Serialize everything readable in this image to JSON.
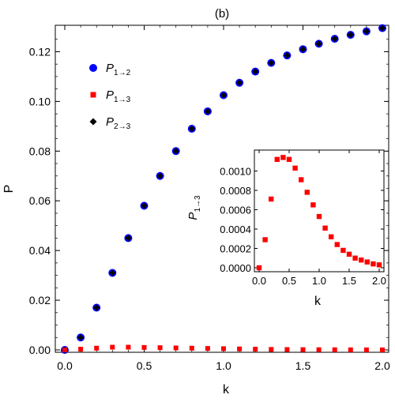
{
  "chart_data": [
    {
      "type": "scatter",
      "title": "(b)",
      "xlabel": "k",
      "ylabel": "P",
      "xlim": [
        0.0,
        2.0
      ],
      "ylim": [
        0.0,
        0.13
      ],
      "xticks": [
        "0.0",
        "0.5",
        "1.0",
        "1.5",
        "2.0"
      ],
      "yticks": [
        "0.00",
        "0.02",
        "0.04",
        "0.06",
        "0.08",
        "0.10",
        "0.12"
      ],
      "x": [
        0.0,
        0.1,
        0.2,
        0.3,
        0.4,
        0.5,
        0.6,
        0.7,
        0.8,
        0.9,
        1.0,
        1.1,
        1.2,
        1.3,
        1.4,
        1.5,
        1.6,
        1.7,
        1.8,
        1.9,
        2.0
      ],
      "series": [
        {
          "name": "P1→2",
          "label_main": "P",
          "label_sub": "1→2",
          "marker": "circle",
          "color": "#0000ff",
          "values": [
            0.0,
            0.005,
            0.017,
            0.031,
            0.045,
            0.058,
            0.07,
            0.08,
            0.089,
            0.096,
            0.1025,
            0.1075,
            0.112,
            0.1155,
            0.1185,
            0.121,
            0.1232,
            0.1252,
            0.1268,
            0.1282,
            0.1295
          ]
        },
        {
          "name": "P1→3",
          "label_main": "P",
          "label_sub": "1→3",
          "marker": "square",
          "color": "#ff0000",
          "values": [
            0.0,
            0.0003,
            0.0007,
            0.0011,
            0.0011,
            0.001,
            0.0009,
            0.0008,
            0.0007,
            0.0006,
            0.0005,
            0.0004,
            0.0003,
            0.0002,
            0.00016,
            0.00012,
            9e-05,
            7e-05,
            5e-05,
            4e-05,
            3e-05
          ]
        },
        {
          "name": "P2→3",
          "label_main": "P",
          "label_sub": "2→3",
          "marker": "diamond",
          "color": "#000000",
          "values": [
            0.0,
            0.005,
            0.017,
            0.031,
            0.045,
            0.058,
            0.07,
            0.08,
            0.089,
            0.096,
            0.1025,
            0.1075,
            0.112,
            0.1155,
            0.1185,
            0.121,
            0.1232,
            0.1252,
            0.1268,
            0.1282,
            0.1295
          ]
        }
      ],
      "legend_position": "top-left",
      "grid": false
    },
    {
      "type": "scatter",
      "title": "",
      "xlabel": "k",
      "ylabel": "P1→3",
      "ylabel_main": "P",
      "ylabel_sub": "1→3",
      "xlim": [
        0.0,
        2.0
      ],
      "ylim": [
        0.0,
        0.0012
      ],
      "xticks": [
        "0.0",
        "0.5",
        "1.0",
        "1.5",
        "2.0"
      ],
      "yticks": [
        "0.0000",
        "0.0002",
        "0.0004",
        "0.0006",
        "0.0008",
        "0.0010"
      ],
      "x": [
        0.0,
        0.1,
        0.2,
        0.3,
        0.4,
        0.5,
        0.6,
        0.7,
        0.8,
        0.9,
        1.0,
        1.1,
        1.2,
        1.3,
        1.4,
        1.5,
        1.6,
        1.7,
        1.8,
        1.9,
        2.0
      ],
      "series": [
        {
          "name": "P1→3",
          "marker": "square",
          "color": "#ff0000",
          "values": [
            0.0,
            0.00029,
            0.00071,
            0.00112,
            0.00114,
            0.00112,
            0.00103,
            0.00091,
            0.00078,
            0.00065,
            0.00053,
            0.00041,
            0.00032,
            0.00024,
            0.00018,
            0.00014,
            0.0001,
            8e-05,
            6e-05,
            4e-05,
            3e-05
          ]
        }
      ],
      "legend_position": "none",
      "grid": false
    }
  ]
}
